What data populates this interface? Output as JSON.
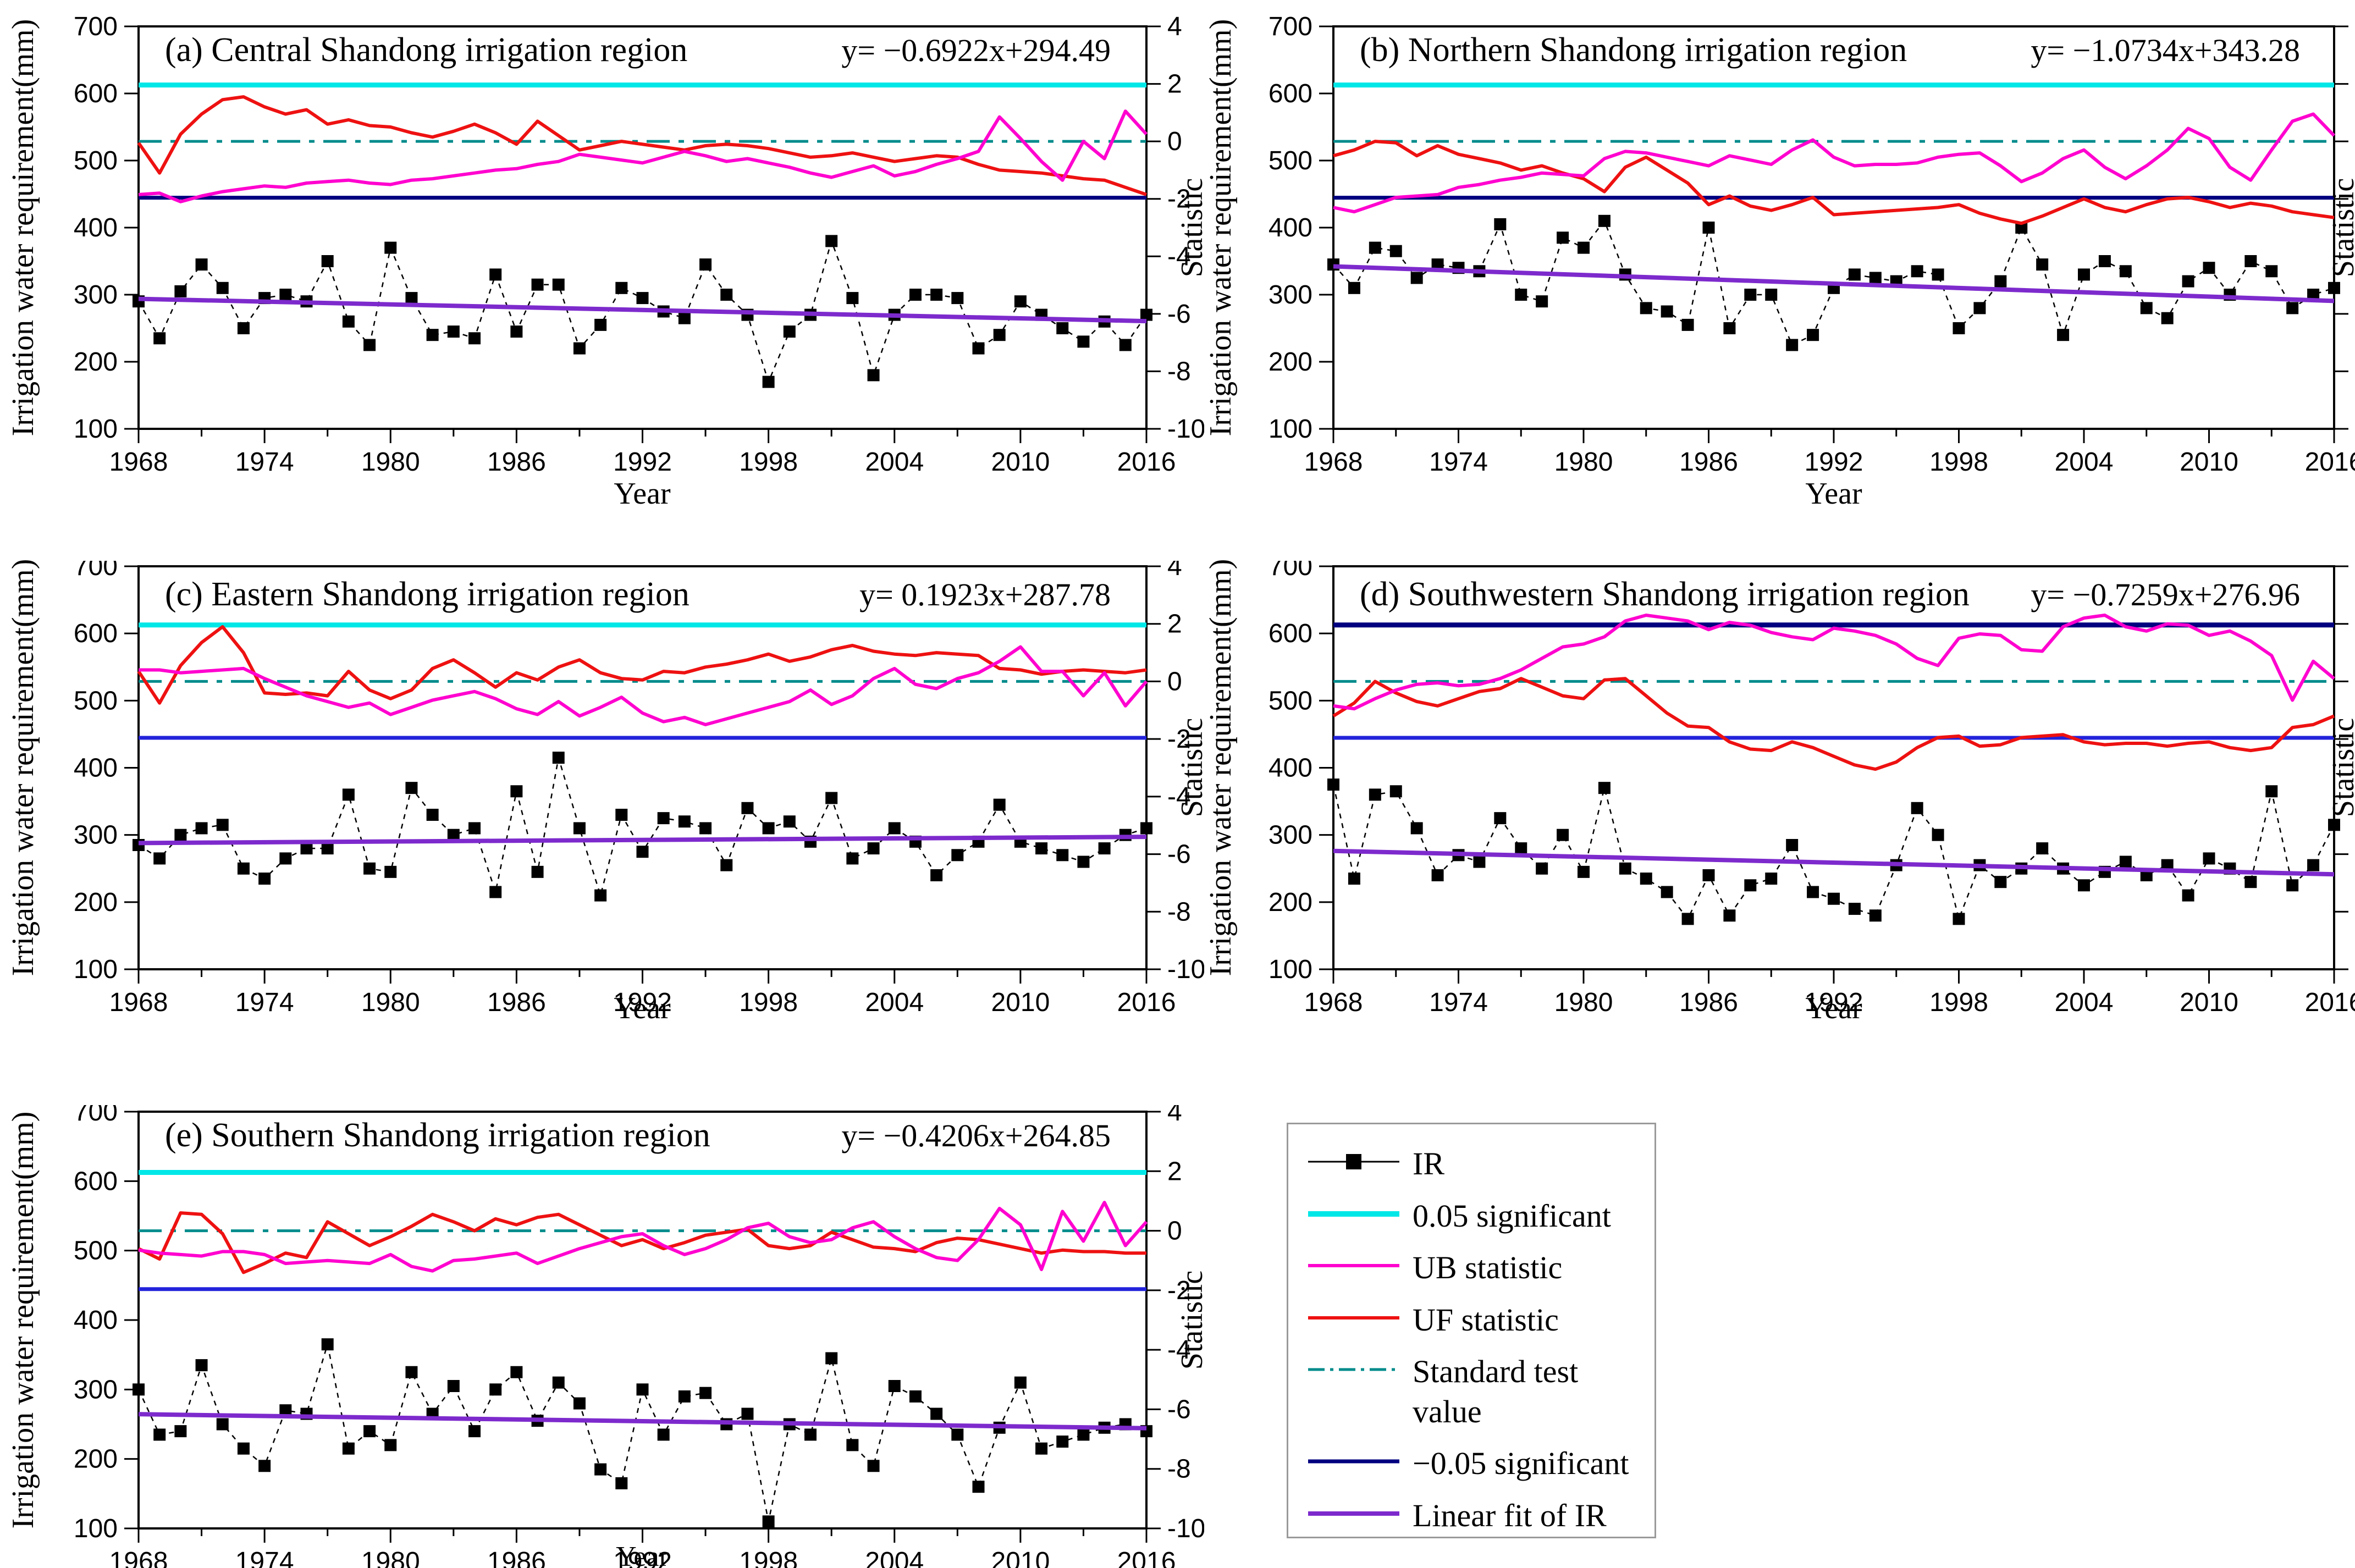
{
  "figure": {
    "x": {
      "start": 1968,
      "end": 2016,
      "tick_step": 6,
      "minor_step": 3,
      "label": "Year",
      "tick_labels": [
        1968,
        1974,
        1980,
        1986,
        1992,
        1998,
        2004,
        2010,
        2016
      ]
    },
    "y_left": {
      "min": 100,
      "max": 700,
      "tick_step": 100,
      "label": "Irrigation water requirement(mm)"
    },
    "y_right": {
      "min": -10,
      "max": 4,
      "tick_step": 2,
      "label": "Statistic"
    },
    "colors": {
      "ir": "#000000",
      "significant_pos": "#00E7E7",
      "ub": "#FF00CF",
      "uf": "#EE1111",
      "standard_test": "#008B8B",
      "significant_neg": "#000080",
      "significant_neg_bright": "#2323DB",
      "linear_fit": "#7D2ACD"
    },
    "legend": {
      "items": [
        {
          "label": "IR",
          "style": "ir",
          "color": "#000000",
          "width": 3
        },
        {
          "label": "0.05 significant",
          "style": "solid",
          "color": "#00E7E7",
          "width": 10
        },
        {
          "label": "UB statistic",
          "style": "solid",
          "color": "#FF00CF",
          "width": 6
        },
        {
          "label": "UF statistic",
          "style": "solid",
          "color": "#EE1111",
          "width": 6
        },
        {
          "label": "Standard test\n value",
          "style": "dashdot",
          "color": "#008B8B",
          "width": 5
        },
        {
          "label": "−0.05 significant",
          "style": "solid",
          "color": "#000080",
          "width": 7
        },
        {
          "label": "Linear fit of IR",
          "style": "solid",
          "color": "#7D2ACD",
          "width": 8
        }
      ]
    }
  },
  "chart_data": [
    {
      "id": "a",
      "type": "line",
      "title": "(a) Central Shandong irrigation region",
      "equation": "y= −0.6922x+294.49",
      "fit": {
        "slope": -0.6922,
        "intercept": 294.49
      },
      "significance_lines": {
        "upper": 1.96,
        "standard": 0,
        "lower": -1.96
      },
      "upper_line_color": "#00E7E7",
      "lower_line_color": "#000080",
      "ylim_left": [
        100,
        700
      ],
      "ylim_right": [
        -10,
        4
      ],
      "years_start": 1968,
      "years_end": 2016,
      "series": {
        "IR_mm": [
          290,
          235,
          305,
          345,
          310,
          250,
          295,
          300,
          290,
          350,
          260,
          225,
          370,
          295,
          240,
          245,
          235,
          330,
          245,
          315,
          315,
          220,
          255,
          310,
          295,
          275,
          265,
          345,
          300,
          270,
          170,
          245,
          270,
          380,
          295,
          180,
          270,
          300,
          300,
          295,
          220,
          240,
          290,
          270,
          250,
          230,
          260,
          225,
          270
        ],
        "UF": [
          -0.05,
          -1.1,
          0.25,
          0.95,
          1.45,
          1.55,
          1.2,
          0.95,
          1.1,
          0.6,
          0.75,
          0.55,
          0.5,
          0.3,
          0.15,
          0.35,
          0.6,
          0.3,
          -0.1,
          0.7,
          0.2,
          -0.3,
          -0.15,
          0,
          -0.1,
          -0.2,
          -0.3,
          -0.15,
          -0.1,
          -0.15,
          -0.25,
          -0.4,
          -0.55,
          -0.5,
          -0.4,
          -0.55,
          -0.7,
          -0.6,
          -0.5,
          -0.55,
          -0.8,
          -1,
          -1.05,
          -1.1,
          -1.2,
          -1.3,
          -1.35,
          -1.6,
          -1.85
        ],
        "UB": [
          -1.85,
          -1.8,
          -2.1,
          -1.9,
          -1.75,
          -1.65,
          -1.55,
          -1.6,
          -1.45,
          -1.4,
          -1.35,
          -1.45,
          -1.5,
          -1.35,
          -1.3,
          -1.2,
          -1.1,
          -1,
          -0.95,
          -0.8,
          -0.7,
          -0.45,
          -0.55,
          -0.65,
          -0.75,
          -0.55,
          -0.35,
          -0.5,
          -0.7,
          -0.6,
          -0.75,
          -0.9,
          -1.1,
          -1.25,
          -1.05,
          -0.85,
          -1.2,
          -1.05,
          -0.8,
          -0.6,
          -0.35,
          0.85,
          0.1,
          -0.7,
          -1.35,
          0,
          -0.6,
          1.05,
          0.25
        ]
      }
    },
    {
      "id": "b",
      "type": "line",
      "title": "(b) Northern Shandong irrigation region",
      "equation": "y= −1.0734x+343.28",
      "fit": {
        "slope": -1.0734,
        "intercept": 343.28
      },
      "significance_lines": {
        "upper": 1.96,
        "standard": 0,
        "lower": -1.96
      },
      "upper_line_color": "#00E7E7",
      "lower_line_color": "#000080",
      "ylim_left": [
        100,
        700
      ],
      "ylim_right": [
        -10,
        4
      ],
      "years_start": 1968,
      "years_end": 2016,
      "series": {
        "IR_mm": [
          345,
          310,
          370,
          365,
          325,
          345,
          340,
          335,
          405,
          300,
          290,
          385,
          370,
          410,
          330,
          280,
          275,
          255,
          400,
          250,
          300,
          300,
          225,
          240,
          310,
          330,
          325,
          320,
          335,
          330,
          250,
          280,
          320,
          400,
          345,
          240,
          330,
          350,
          335,
          280,
          265,
          320,
          340,
          300,
          350,
          335,
          280,
          300,
          310
        ],
        "UF": [
          -0.5,
          -0.3,
          0,
          -0.05,
          -0.5,
          -0.15,
          -0.45,
          -0.6,
          -0.75,
          -1,
          -0.85,
          -1.1,
          -1.3,
          -1.75,
          -0.9,
          -0.55,
          -1,
          -1.45,
          -2.2,
          -1.9,
          -2.25,
          -2.4,
          -2.2,
          -1.95,
          -2.55,
          -2.5,
          -2.45,
          -2.4,
          -2.35,
          -2.3,
          -2.2,
          -2.5,
          -2.7,
          -2.85,
          -2.6,
          -2.3,
          -2,
          -2.3,
          -2.45,
          -2.2,
          -2,
          -1.95,
          -2.1,
          -2.3,
          -2.15,
          -2.25,
          -2.45,
          -2.55,
          -2.65
        ],
        "UB": [
          -2.3,
          -2.45,
          -2.2,
          -1.95,
          -1.9,
          -1.85,
          -1.6,
          -1.5,
          -1.35,
          -1.25,
          -1.1,
          -1.15,
          -1.2,
          -0.6,
          -0.35,
          -0.4,
          -0.55,
          -0.7,
          -0.85,
          -0.5,
          -0.65,
          -0.8,
          -0.3,
          0.05,
          -0.55,
          -0.85,
          -0.8,
          -0.8,
          -0.75,
          -0.55,
          -0.45,
          -0.4,
          -0.85,
          -1.4,
          -1.1,
          -0.6,
          -0.3,
          -0.9,
          -1.3,
          -0.85,
          -0.3,
          0.45,
          0.1,
          -0.9,
          -1.35,
          -0.3,
          0.7,
          0.95,
          0.2
        ]
      }
    },
    {
      "id": "c",
      "type": "line",
      "title": "(c) Eastern Shandong irrigation region",
      "equation": "y= 0.1923x+287.78",
      "fit": {
        "slope": 0.1923,
        "intercept": 287.78
      },
      "significance_lines": {
        "upper": 1.96,
        "standard": 0,
        "lower": -1.96
      },
      "upper_line_color": "#00E7E7",
      "lower_line_color": "#2323DB",
      "ylim_left": [
        100,
        700
      ],
      "ylim_right": [
        -10,
        4
      ],
      "years_start": 1968,
      "years_end": 2016,
      "series": {
        "IR_mm": [
          285,
          265,
          300,
          310,
          315,
          250,
          235,
          265,
          280,
          280,
          360,
          250,
          245,
          370,
          330,
          300,
          310,
          215,
          365,
          245,
          415,
          310,
          210,
          330,
          275,
          325,
          320,
          310,
          255,
          340,
          310,
          320,
          290,
          355,
          265,
          280,
          310,
          290,
          240,
          270,
          290,
          345,
          290,
          280,
          270,
          260,
          280,
          300,
          310
        ],
        "UF": [
          0.35,
          -0.75,
          0.55,
          1.35,
          1.9,
          1,
          -0.4,
          -0.45,
          -0.4,
          -0.5,
          0.35,
          -0.3,
          -0.6,
          -0.3,
          0.45,
          0.75,
          0.3,
          -0.2,
          0.3,
          0.05,
          0.5,
          0.75,
          0.3,
          0.1,
          0.05,
          0.35,
          0.3,
          0.5,
          0.6,
          0.75,
          0.95,
          0.7,
          0.85,
          1.1,
          1.25,
          1.05,
          0.95,
          0.9,
          1,
          0.95,
          0.9,
          0.45,
          0.4,
          0.25,
          0.35,
          0.4,
          0.35,
          0.3,
          0.4
        ],
        "UB": [
          0.4,
          0.4,
          0.3,
          0.35,
          0.4,
          0.45,
          0.1,
          -0.2,
          -0.5,
          -0.7,
          -0.9,
          -0.75,
          -1.15,
          -0.9,
          -0.65,
          -0.5,
          -0.35,
          -0.6,
          -0.95,
          -1.15,
          -0.7,
          -1.2,
          -0.9,
          -0.55,
          -1.1,
          -1.4,
          -1.25,
          -1.5,
          -1.3,
          -1.1,
          -0.9,
          -0.7,
          -0.3,
          -0.8,
          -0.5,
          0.1,
          0.45,
          -0.1,
          -0.25,
          0.1,
          0.3,
          0.7,
          1.2,
          0.35,
          0.35,
          -0.5,
          0.3,
          -0.85,
          0
        ]
      }
    },
    {
      "id": "d",
      "type": "line",
      "title": "(d) Southwestern Shandong irrigation region",
      "equation": "y= −0.7259x+276.96",
      "fit": {
        "slope": -0.7259,
        "intercept": 276.96
      },
      "significance_lines": {
        "upper": 1.96,
        "standard": 0,
        "lower": -1.96
      },
      "upper_line_color": "#000080",
      "lower_line_color": "#2323DB",
      "ylim_left": [
        100,
        700
      ],
      "ylim_right": [
        -10,
        4
      ],
      "years_start": 1968,
      "years_end": 2016,
      "series": {
        "IR_mm": [
          375,
          235,
          360,
          365,
          310,
          240,
          270,
          260,
          325,
          280,
          250,
          300,
          245,
          370,
          250,
          235,
          215,
          175,
          240,
          180,
          225,
          235,
          285,
          215,
          205,
          190,
          180,
          255,
          340,
          300,
          175,
          255,
          230,
          250,
          280,
          250,
          225,
          245,
          260,
          240,
          255,
          210,
          265,
          250,
          230,
          365,
          225,
          255,
          315
        ],
        "UF": [
          -1.2,
          -0.75,
          0,
          -0.4,
          -0.7,
          -0.85,
          -0.6,
          -0.35,
          -0.25,
          0.1,
          -0.2,
          -0.5,
          -0.6,
          0.05,
          0.1,
          -0.5,
          -1.1,
          -1.55,
          -1.6,
          -2.1,
          -2.35,
          -2.4,
          -2.1,
          -2.3,
          -2.6,
          -2.9,
          -3.05,
          -2.8,
          -2.3,
          -1.95,
          -1.9,
          -2.25,
          -2.2,
          -1.95,
          -1.9,
          -1.85,
          -2.1,
          -2.2,
          -2.15,
          -2.15,
          -2.25,
          -2.15,
          -2.1,
          -2.3,
          -2.4,
          -2.3,
          -1.6,
          -1.5,
          -1.2
        ],
        "UB": [
          -0.85,
          -0.95,
          -0.6,
          -0.3,
          -0.1,
          -0.05,
          -0.15,
          -0.1,
          0.1,
          0.4,
          0.8,
          1.2,
          1.3,
          1.55,
          2.1,
          2.3,
          2.2,
          2.1,
          1.8,
          2.05,
          1.95,
          1.7,
          1.55,
          1.45,
          1.85,
          1.75,
          1.6,
          1.3,
          0.8,
          0.55,
          1.5,
          1.65,
          1.6,
          1.1,
          1.05,
          1.9,
          2.2,
          2.3,
          1.9,
          1.75,
          2,
          1.95,
          1.6,
          1.75,
          1.4,
          0.9,
          -0.65,
          0.7,
          0.1
        ]
      }
    },
    {
      "id": "e",
      "type": "line",
      "title": "(e) Southern Shandong irrigation region",
      "equation": "y= −0.4206x+264.85",
      "fit": {
        "slope": -0.4206,
        "intercept": 264.85
      },
      "significance_lines": {
        "upper": 1.96,
        "standard": 0,
        "lower": -1.96
      },
      "upper_line_color": "#00E7E7",
      "lower_line_color": "#2323DB",
      "ylim_left": [
        100,
        700
      ],
      "ylim_right": [
        -10,
        4
      ],
      "years_start": 1968,
      "years_end": 2016,
      "series": {
        "IR_mm": [
          300,
          235,
          240,
          335,
          250,
          215,
          190,
          270,
          265,
          365,
          215,
          240,
          220,
          325,
          265,
          305,
          240,
          300,
          325,
          255,
          310,
          280,
          185,
          165,
          300,
          235,
          290,
          295,
          250,
          265,
          110,
          250,
          235,
          345,
          220,
          190,
          305,
          290,
          265,
          235,
          160,
          245,
          310,
          215,
          225,
          235,
          245,
          250,
          240
        ],
        "UF": [
          -0.6,
          -0.95,
          0.6,
          0.55,
          -0.1,
          -1.4,
          -1.1,
          -0.75,
          -0.9,
          0.3,
          -0.1,
          -0.5,
          -0.2,
          0.15,
          0.55,
          0.3,
          0,
          0.4,
          0.2,
          0.45,
          0.55,
          0.2,
          -0.15,
          -0.5,
          -0.3,
          -0.6,
          -0.4,
          -0.15,
          -0.05,
          0.05,
          -0.5,
          -0.6,
          -0.5,
          -0.05,
          -0.3,
          -0.55,
          -0.6,
          -0.7,
          -0.4,
          -0.25,
          -0.3,
          -0.45,
          -0.6,
          -0.75,
          -0.65,
          -0.7,
          -0.7,
          -0.75,
          -0.75
        ],
        "UB": [
          -0.65,
          -0.75,
          -0.8,
          -0.85,
          -0.7,
          -0.7,
          -0.8,
          -1.1,
          -1.05,
          -1,
          -1.05,
          -1.1,
          -0.8,
          -1.2,
          -1.35,
          -1,
          -0.95,
          -0.85,
          -0.75,
          -1.1,
          -0.85,
          -0.6,
          -0.4,
          -0.2,
          -0.1,
          -0.5,
          -0.8,
          -0.6,
          -0.3,
          0.1,
          0.25,
          -0.2,
          -0.4,
          -0.3,
          0.1,
          0.3,
          -0.2,
          -0.6,
          -0.9,
          -1,
          -0.3,
          0.75,
          0.2,
          -1.3,
          0.65,
          -0.35,
          0.95,
          -0.5,
          0.3
        ]
      }
    }
  ]
}
